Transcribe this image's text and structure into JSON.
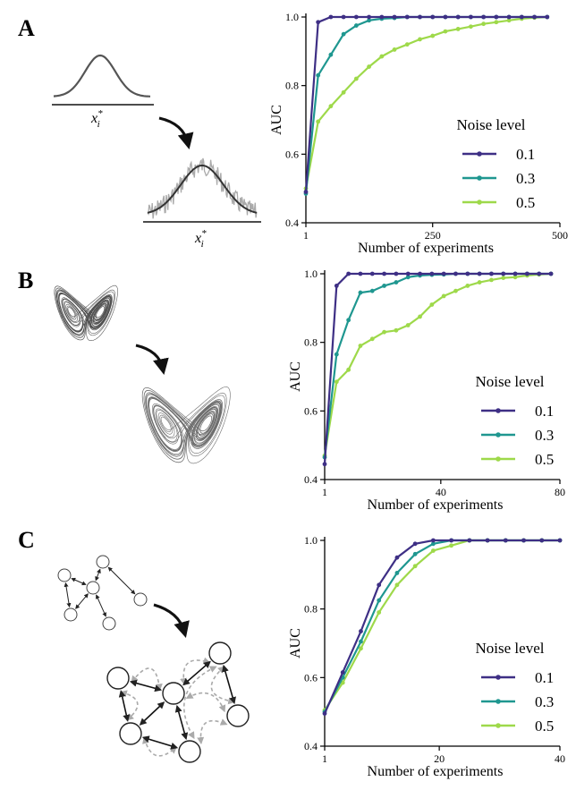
{
  "panels": [
    {
      "letter": "A",
      "illustration": "gaussian-noise",
      "var_label_top": "x",
      "var_label_bottom": "x",
      "var_sub": "i",
      "var_sup": "*"
    },
    {
      "letter": "B",
      "illustration": "lorenz-attractor"
    },
    {
      "letter": "C",
      "illustration": "network-graph"
    }
  ],
  "legend_title": "Noise level",
  "colors": {
    "0.1": "#3e2f85",
    "0.3": "#1f9790",
    "0.5": "#9ed94a"
  },
  "chart_data": [
    {
      "type": "line",
      "xlabel": "Number of experiments",
      "ylabel": "AUC",
      "xlim": [
        1,
        500
      ],
      "ylim": [
        0.4,
        1.0
      ],
      "xticks": [
        1,
        250,
        500
      ],
      "yticks": [
        "0.4",
        "0.6",
        "0.8",
        "1.0"
      ],
      "legend_title": "Noise level",
      "x": [
        1,
        25,
        50,
        75,
        100,
        125,
        150,
        175,
        200,
        225,
        250,
        275,
        300,
        325,
        350,
        375,
        400,
        425,
        450,
        475
      ],
      "series": [
        {
          "name": "0.1",
          "values": [
            0.49,
            0.985,
            1.0,
            1.0,
            1.0,
            1.0,
            1.0,
            1.0,
            1.0,
            1.0,
            1.0,
            1.0,
            1.0,
            1.0,
            1.0,
            1.0,
            1.0,
            1.0,
            1.0,
            1.0
          ]
        },
        {
          "name": "0.3",
          "values": [
            0.485,
            0.83,
            0.89,
            0.95,
            0.975,
            0.99,
            0.995,
            0.997,
            1.0,
            1.0,
            1.0,
            1.0,
            1.0,
            1.0,
            1.0,
            1.0,
            1.0,
            1.0,
            1.0,
            1.0
          ]
        },
        {
          "name": "0.5",
          "values": [
            0.5,
            0.695,
            0.74,
            0.78,
            0.82,
            0.855,
            0.885,
            0.905,
            0.92,
            0.935,
            0.945,
            0.958,
            0.965,
            0.972,
            0.98,
            0.985,
            0.99,
            0.995,
            0.998,
            1.0
          ]
        }
      ]
    },
    {
      "type": "line",
      "xlabel": "Number of experiments",
      "ylabel": "AUC",
      "xlim": [
        1,
        80
      ],
      "ylim": [
        0.4,
        1.0
      ],
      "xticks": [
        1,
        40,
        80
      ],
      "yticks": [
        "0.4",
        "0.6",
        "0.8",
        "1.0"
      ],
      "legend_title": "Noise level",
      "x": [
        1,
        5,
        9,
        13,
        17,
        21,
        25,
        29,
        33,
        37,
        41,
        45,
        49,
        53,
        57,
        61,
        65,
        69,
        73,
        77
      ],
      "series": [
        {
          "name": "0.1",
          "values": [
            0.445,
            0.965,
            1.0,
            1.0,
            1.0,
            1.0,
            1.0,
            1.0,
            1.0,
            1.0,
            1.0,
            1.0,
            1.0,
            1.0,
            1.0,
            1.0,
            1.0,
            1.0,
            1.0,
            1.0
          ]
        },
        {
          "name": "0.3",
          "values": [
            0.465,
            0.765,
            0.865,
            0.945,
            0.95,
            0.965,
            0.975,
            0.99,
            0.995,
            0.997,
            0.998,
            1.0,
            1.0,
            1.0,
            1.0,
            1.0,
            1.0,
            1.0,
            1.0,
            1.0
          ]
        },
        {
          "name": "0.5",
          "values": [
            0.47,
            0.685,
            0.72,
            0.79,
            0.81,
            0.83,
            0.835,
            0.85,
            0.875,
            0.91,
            0.935,
            0.95,
            0.965,
            0.975,
            0.982,
            0.988,
            0.99,
            0.995,
            0.998,
            1.0
          ]
        }
      ]
    },
    {
      "type": "line",
      "xlabel": "Number of experiments",
      "ylabel": "AUC",
      "xlim": [
        1,
        40
      ],
      "ylim": [
        0.4,
        1.0
      ],
      "xticks": [
        1,
        20,
        40
      ],
      "yticks": [
        "0.4",
        "0.6",
        "0.8",
        "1.0"
      ],
      "legend_title": "Noise level",
      "x": [
        1,
        4,
        7,
        10,
        13,
        16,
        19,
        22,
        25,
        28,
        31,
        34,
        37,
        40
      ],
      "series": [
        {
          "name": "0.1",
          "values": [
            0.495,
            0.615,
            0.735,
            0.87,
            0.95,
            0.99,
            1.0,
            1.0,
            1.0,
            1.0,
            1.0,
            1.0,
            1.0,
            1.0
          ]
        },
        {
          "name": "0.3",
          "values": [
            0.5,
            0.6,
            0.705,
            0.825,
            0.905,
            0.96,
            0.99,
            1.0,
            1.0,
            1.0,
            1.0,
            1.0,
            1.0,
            1.0
          ]
        },
        {
          "name": "0.5",
          "values": [
            0.505,
            0.585,
            0.685,
            0.79,
            0.87,
            0.925,
            0.97,
            0.985,
            1.0,
            1.0,
            1.0,
            1.0,
            1.0,
            1.0
          ]
        }
      ]
    }
  ]
}
